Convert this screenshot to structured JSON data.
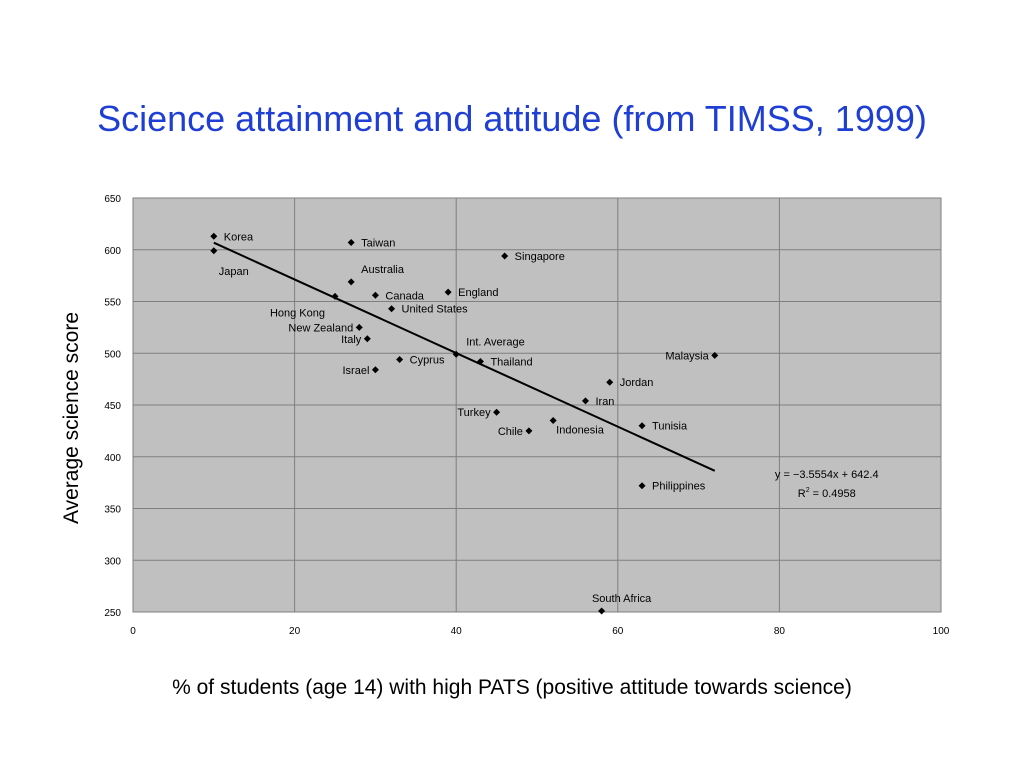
{
  "slide": {
    "title": "Science attainment and attitude (from TIMSS, 1999)"
  },
  "chart_data": {
    "type": "scatter",
    "title": "",
    "xlabel": "% of students (age 14) with high PATS (positive attitude towards science)",
    "ylabel": "Average science score",
    "xlim": [
      0,
      100
    ],
    "ylim": [
      250,
      650
    ],
    "x_ticks": [
      0,
      20,
      40,
      60,
      80,
      100
    ],
    "y_ticks": [
      250,
      300,
      350,
      400,
      450,
      500,
      550,
      600,
      650
    ],
    "grid": true,
    "background": "#c0c0c0",
    "marker_color": "#000000",
    "points": [
      {
        "label": "Korea",
        "x": 10,
        "y": 613,
        "side": "right"
      },
      {
        "label": "Japan",
        "x": 10,
        "y": 599,
        "side": "below"
      },
      {
        "label": "Taiwan",
        "x": 27,
        "y": 607,
        "side": "right"
      },
      {
        "label": "Singapore",
        "x": 46,
        "y": 594,
        "side": "right"
      },
      {
        "label": "Australia",
        "x": 27,
        "y": 569,
        "side": "right-up"
      },
      {
        "label": "Canada",
        "x": 30,
        "y": 556,
        "side": "right"
      },
      {
        "label": "England",
        "x": 39,
        "y": 559,
        "side": "right"
      },
      {
        "label": "Hong Kong",
        "x": 25,
        "y": 555,
        "side": "left-down"
      },
      {
        "label": "United States",
        "x": 32,
        "y": 543,
        "side": "right"
      },
      {
        "label": "New Zealand",
        "x": 28,
        "y": 525,
        "side": "left"
      },
      {
        "label": "Italy",
        "x": 29,
        "y": 514,
        "side": "left"
      },
      {
        "label": "Int. Average",
        "x": 40,
        "y": 499,
        "side": "right-up"
      },
      {
        "label": "Cyprus",
        "x": 33,
        "y": 494,
        "side": "right"
      },
      {
        "label": "Thailand",
        "x": 43,
        "y": 492,
        "side": "right"
      },
      {
        "label": "Israel",
        "x": 30,
        "y": 484,
        "side": "left"
      },
      {
        "label": "Malaysia",
        "x": 72,
        "y": 498,
        "side": "left"
      },
      {
        "label": "Jordan",
        "x": 59,
        "y": 472,
        "side": "right"
      },
      {
        "label": "Iran",
        "x": 56,
        "y": 454,
        "side": "right"
      },
      {
        "label": "Turkey",
        "x": 45,
        "y": 443,
        "side": "left"
      },
      {
        "label": "Chile",
        "x": 49,
        "y": 425,
        "side": "left"
      },
      {
        "label": "Indonesia",
        "x": 52,
        "y": 435,
        "side": "right-down"
      },
      {
        "label": "Tunisia",
        "x": 63,
        "y": 430,
        "side": "right"
      },
      {
        "label": "Philippines",
        "x": 63,
        "y": 372,
        "side": "right"
      },
      {
        "label": "South Africa",
        "x": 58,
        "y": 251,
        "side": "up"
      }
    ],
    "trendline": {
      "slope": -3.5554,
      "intercept": 642.4,
      "x_range": [
        10,
        72
      ],
      "equation": "y = −3.5554x + 642.4",
      "r2_prefix": "R",
      "r2_sup": "2",
      "r2_value": " = 0.4958"
    }
  }
}
